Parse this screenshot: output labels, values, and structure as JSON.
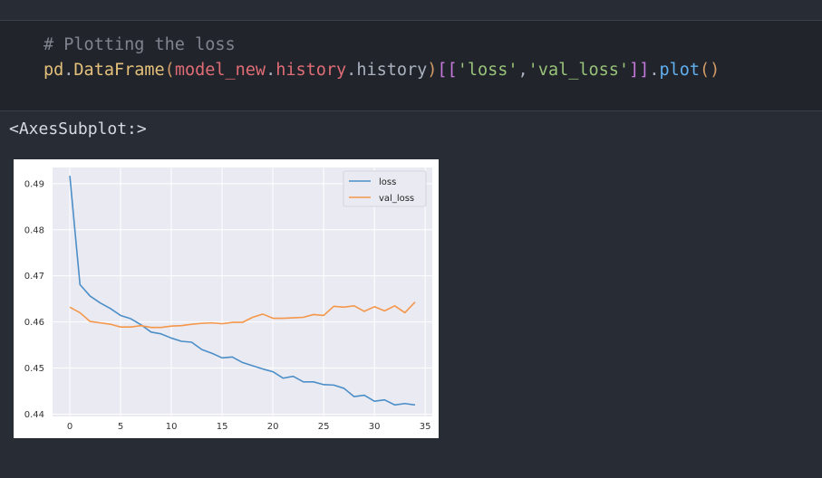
{
  "code_cell": {
    "line1": {
      "comment": "# Plotting the loss"
    },
    "line2": {
      "obj": "pd",
      "dot1": ".",
      "fn": "DataFrame",
      "open_paren": "(",
      "var": "model_new",
      "dot2": ".",
      "attr1": "history",
      "dot3": ".",
      "attr2": "history",
      "close_paren": ")",
      "open_brackets": "[[",
      "str1": "'loss'",
      "comma": ",",
      "str2": "'val_loss'",
      "close_brackets": "]]",
      "dot4": ".",
      "method": "plot",
      "call_parens": "()"
    }
  },
  "output": {
    "text": "<AxesSubplot:>"
  },
  "colors": {
    "loss": "#4c8fc8",
    "val_loss": "#f5974a",
    "plot_bg": "#eaeaf2"
  },
  "chart_data": {
    "type": "line",
    "xlim": [
      -1.7,
      35.7
    ],
    "ylim": [
      0.4395,
      0.4935
    ],
    "xticks": [
      0,
      5,
      10,
      15,
      20,
      25,
      30,
      35
    ],
    "yticks": [
      0.44,
      0.45,
      0.46,
      0.47,
      0.48,
      0.49
    ],
    "ytick_labels": [
      "0.44",
      "0.45",
      "0.46",
      "0.47",
      "0.48",
      "0.49"
    ],
    "grid": true,
    "legend_position": "top-right",
    "series": [
      {
        "name": "loss",
        "color": "#4c8fc8",
        "values": [
          0.4917,
          0.4681,
          0.4656,
          0.4641,
          0.4629,
          0.4614,
          0.4607,
          0.4594,
          0.4578,
          0.4574,
          0.4565,
          0.4558,
          0.4556,
          0.454,
          0.4532,
          0.4522,
          0.4524,
          0.4512,
          0.4505,
          0.4498,
          0.4492,
          0.4478,
          0.4482,
          0.447,
          0.447,
          0.4464,
          0.4463,
          0.4456,
          0.4438,
          0.4441,
          0.4428,
          0.4431,
          0.442,
          0.4423,
          0.442
        ]
      },
      {
        "name": "val_loss",
        "color": "#f5974a",
        "values": [
          0.4632,
          0.462,
          0.4601,
          0.4598,
          0.4595,
          0.4589,
          0.4589,
          0.4592,
          0.4588,
          0.4588,
          0.4591,
          0.4592,
          0.4595,
          0.4597,
          0.4598,
          0.4596,
          0.4599,
          0.4599,
          0.461,
          0.4617,
          0.4608,
          0.4608,
          0.4609,
          0.461,
          0.4616,
          0.4614,
          0.4634,
          0.4632,
          0.4635,
          0.4623,
          0.4633,
          0.4624,
          0.4635,
          0.462,
          0.4643
        ]
      }
    ]
  }
}
